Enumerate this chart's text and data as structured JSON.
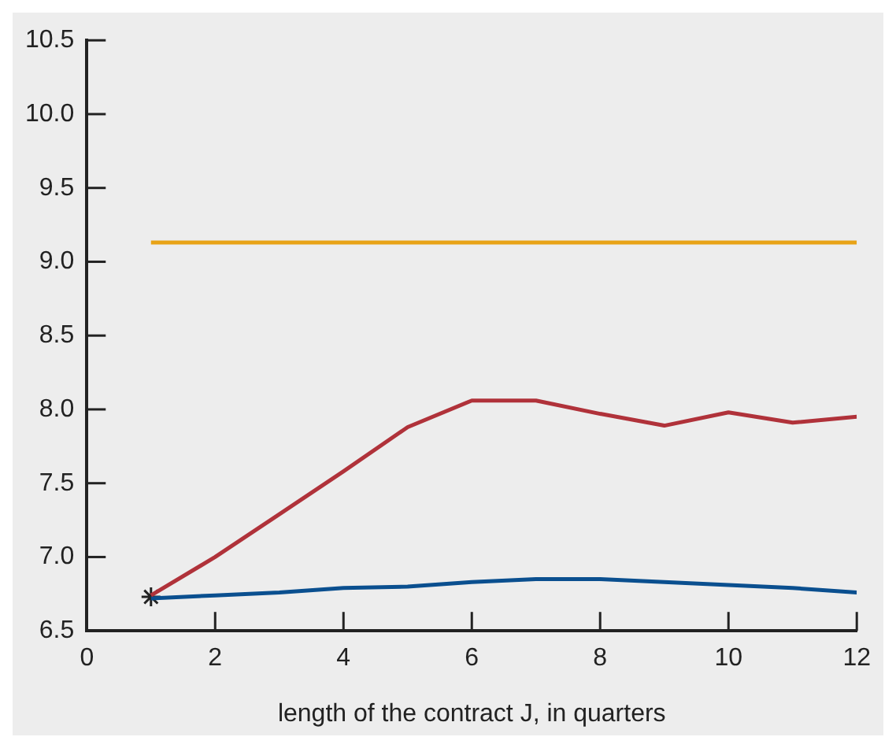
{
  "chart_data": {
    "type": "line",
    "xlabel": "length of the contract J, in quarters",
    "xlim": [
      0,
      12
    ],
    "xticks": [
      0,
      2,
      4,
      6,
      8,
      10,
      12
    ],
    "ylim": [
      6.5,
      10.5
    ],
    "yticks": [
      6.5,
      {
        "value": 7,
        "label": "7.0"
      },
      7.5,
      {
        "value": 8,
        "label": "8.0"
      },
      8.5,
      {
        "value": 9,
        "label": "9.0"
      },
      9.5,
      {
        "value": 10,
        "label": "10.0"
      },
      10.5
    ],
    "grid": false,
    "legend": false,
    "marker": "none",
    "line_style": "solid",
    "series": [
      {
        "color": "#e8a317",
        "x": [
          1,
          12
        ],
        "values": [
          9.13,
          9.13
        ]
      },
      {
        "color": "#b0323a",
        "x": [
          1,
          2,
          3,
          4,
          5,
          6,
          7,
          8,
          9,
          10,
          11,
          12
        ],
        "values": [
          6.74,
          7.0,
          7.29,
          7.58,
          7.88,
          8.06,
          8.06,
          7.97,
          7.89,
          7.98,
          7.91,
          7.95
        ]
      },
      {
        "color": "#0a4f8f",
        "x": [
          1,
          2,
          3,
          4,
          5,
          6,
          7,
          8,
          9,
          10,
          11,
          12
        ],
        "values": [
          6.72,
          6.74,
          6.76,
          6.79,
          6.8,
          6.83,
          6.85,
          6.85,
          6.83,
          6.81,
          6.79,
          6.76
        ]
      },
      {
        "type": "scatter",
        "marker": "cross",
        "color": "#222222",
        "x": [
          1
        ],
        "values": [
          6.73
        ]
      }
    ]
  }
}
